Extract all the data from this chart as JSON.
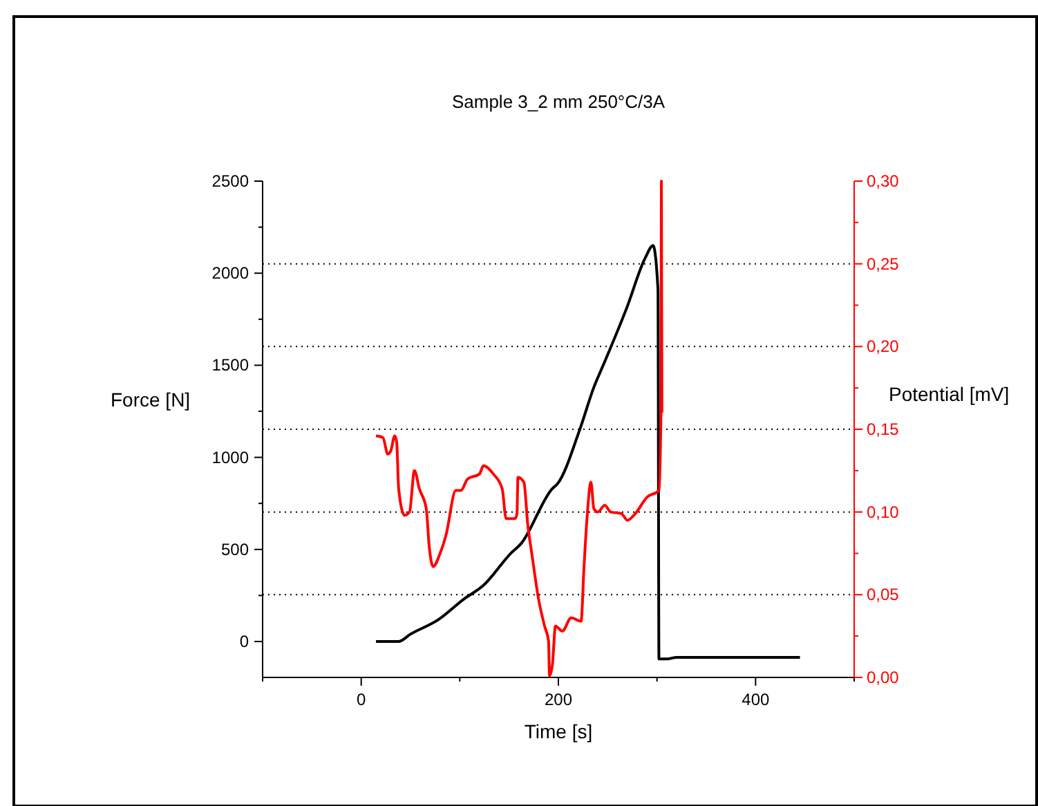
{
  "chart_data": {
    "type": "line",
    "title": "Sample 3_2 mm 250°C/3A",
    "xlabel": "Time [s]",
    "ylabel": "Force [N]",
    "y2label": "Potential [mV]",
    "xlim": [
      -100,
      500
    ],
    "xticks": [
      {
        "value": -100,
        "label": null
      },
      0,
      {
        "value": 100,
        "label": null
      },
      200,
      {
        "value": 300,
        "label": null
      },
      400,
      {
        "value": 500,
        "label": null
      }
    ],
    "ylim": [
      -195,
      2500
    ],
    "yticks": [
      0,
      {
        "value": 250,
        "label": null
      },
      500,
      {
        "value": 750,
        "label": null
      },
      1000,
      {
        "value": 1250,
        "label": null
      },
      1500,
      {
        "value": 1750,
        "label": null
      },
      2000,
      {
        "value": 2250,
        "label": null
      },
      2500
    ],
    "y2lim": [
      0,
      0.3
    ],
    "y2ticks": [
      {
        "value": 0,
        "label": "0,00"
      },
      {
        "value": 0.025,
        "label": null
      },
      {
        "value": 0.05,
        "label": "0,05"
      },
      {
        "value": 0.075,
        "label": null
      },
      {
        "value": 0.1,
        "label": "0,10"
      },
      {
        "value": 0.125,
        "label": null
      },
      {
        "value": 0.15,
        "label": "0,15"
      },
      {
        "value": 0.175,
        "label": null
      },
      {
        "value": 0.2,
        "label": "0,20"
      },
      {
        "value": 0.225,
        "label": null
      },
      {
        "value": 0.25,
        "label": "0,25"
      },
      {
        "value": 0.275,
        "label": null
      },
      {
        "value": 0.3,
        "label": "0,30"
      }
    ],
    "grid": "y",
    "line_style": "solid",
    "series": [
      {
        "color": "#000000",
        "x": [
          15,
          38,
          50,
          78,
          104,
          124,
          152,
          162,
          194,
          199,
          222,
          236,
          246,
          269,
          288,
          296,
          301,
          302,
          310,
          320,
          445
        ],
        "values": [
          0,
          0,
          40,
          118,
          230,
          305,
          480,
          531,
          831,
          856,
          1156,
          1381,
          1507,
          1807,
          2082,
          2150,
          1912,
          -95,
          -95,
          -86,
          -86
        ]
      },
      {
        "color": "#ff0000",
        "axis": "y2",
        "x": [
          15,
          22,
          27,
          30,
          34,
          36,
          38,
          44,
          49,
          54,
          59,
          66,
          69,
          73,
          80,
          86,
          96,
          101,
          108,
          120,
          124,
          134,
          143,
          147,
          156,
          158,
          159,
          165,
          169,
          173,
          180,
          186,
          190,
          191,
          194,
          197,
          204,
          213,
          223,
          226,
          229,
          233,
          236,
          240,
          247,
          253,
          264,
          270,
          278,
          290,
          302,
          304,
          304.5,
          305
        ],
        "values": [
          0.146,
          0.145,
          0.135,
          0.137,
          0.146,
          0.142,
          0.114,
          0.098,
          0.1,
          0.125,
          0.114,
          0.102,
          0.079,
          0.067,
          0.075,
          0.086,
          0.113,
          0.113,
          0.12,
          0.123,
          0.128,
          0.123,
          0.114,
          0.096,
          0.096,
          0.099,
          0.121,
          0.118,
          0.092,
          0.075,
          0.047,
          0.031,
          0.022,
          0.001,
          0.008,
          0.031,
          0.028,
          0.036,
          0.034,
          0.067,
          0.096,
          0.118,
          0.102,
          0.1,
          0.104,
          0.1,
          0.099,
          0.095,
          0.099,
          0.109,
          0.113,
          0.159,
          0.3,
          0.16
        ]
      }
    ]
  }
}
